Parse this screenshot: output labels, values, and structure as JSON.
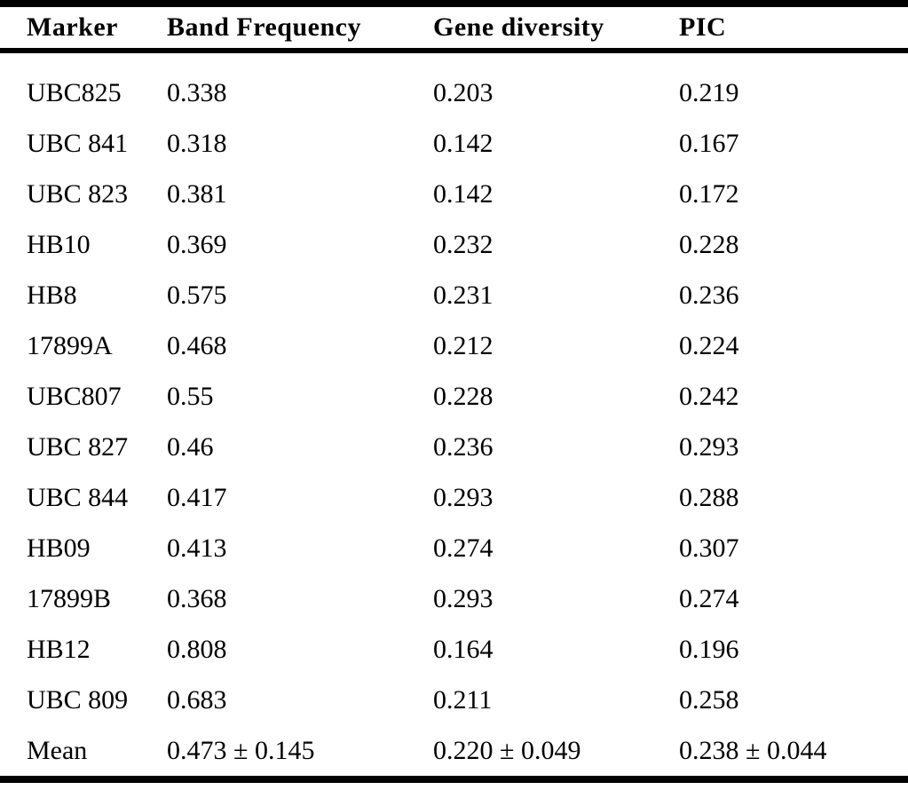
{
  "table": {
    "columns": [
      "Marker",
      "Band Frequency",
      "Gene diversity",
      "PIC"
    ],
    "rows": [
      [
        "UBC825",
        "0.338",
        "0.203",
        "0.219"
      ],
      [
        "UBC 841",
        "0.318",
        "0.142",
        "0.167"
      ],
      [
        "UBC 823",
        "0.381",
        "0.142",
        "0.172"
      ],
      [
        "HB10",
        "0.369",
        "0.232",
        "0.228"
      ],
      [
        "HB8",
        "0.575",
        "0.231",
        "0.236"
      ],
      [
        "17899A",
        "0.468",
        "0.212",
        "0.224"
      ],
      [
        "UBC807",
        "0.55",
        "0.228",
        "0.242"
      ],
      [
        "UBC 827",
        "0.46",
        "0.236",
        "0.293"
      ],
      [
        "UBC 844",
        "0.417",
        "0.293",
        "0.288"
      ],
      [
        "HB09",
        "0.413",
        "0.274",
        "0.307"
      ],
      [
        "17899B",
        "0.368",
        "0.293",
        "0.274"
      ],
      [
        "HB12",
        "0.808",
        "0.164",
        "0.196"
      ],
      [
        "UBC 809",
        "0.683",
        "0.211",
        "0.258"
      ],
      [
        "Mean",
        "0.473 ± 0.145",
        "0.220 ± 0.049",
        "0.238 ± 0.044"
      ]
    ],
    "colors": {
      "text": "#000000",
      "background": "#ffffff",
      "rule": "#000000"
    }
  }
}
